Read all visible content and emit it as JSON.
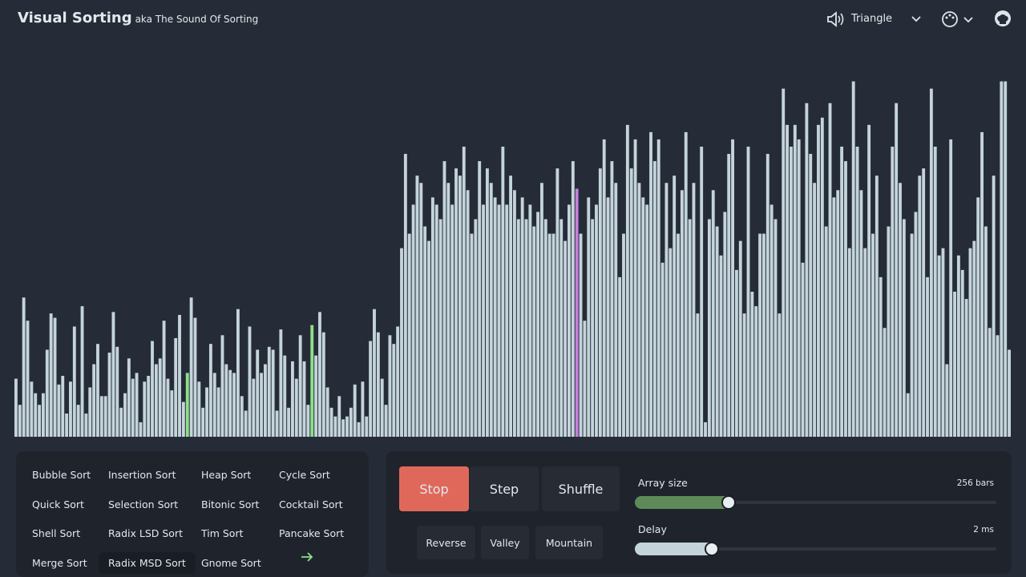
{
  "header": {
    "title": "Visual Sorting",
    "subtitle": "aka The Sound Of Sorting",
    "sound": "Triangle"
  },
  "bars": {
    "values": [
      40,
      22,
      96,
      80,
      38,
      30,
      22,
      30,
      60,
      85,
      82,
      36,
      42,
      16,
      38,
      76,
      22,
      90,
      16,
      34,
      50,
      64,
      28,
      28,
      58,
      86,
      62,
      20,
      30,
      54,
      40,
      44,
      10,
      38,
      42,
      66,
      50,
      54,
      80,
      40,
      32,
      68,
      84,
      24,
      44,
      96,
      82,
      38,
      20,
      34,
      64,
      44,
      34,
      70,
      50,
      46,
      44,
      88,
      28,
      18,
      76,
      40,
      60,
      44,
      50,
      62,
      60,
      18,
      74,
      56,
      20,
      52,
      40,
      70,
      52,
      22,
      77,
      56,
      86,
      72,
      34,
      20,
      14,
      28,
      12,
      14,
      20,
      36,
      10,
      38,
      14,
      66,
      88,
      72,
      40,
      22,
      70,
      64,
      76,
      130,
      195,
      140,
      160,
      180,
      175,
      145,
      135,
      165,
      160,
      150,
      190,
      175,
      160,
      185,
      180,
      200,
      170,
      140,
      150,
      190,
      160,
      185,
      175,
      165,
      160,
      200,
      160,
      180,
      170,
      150,
      165,
      150,
      160,
      145,
      155,
      175,
      150,
      140,
      140,
      185,
      150,
      135,
      160,
      190,
      171,
      140,
      80,
      165,
      150,
      160,
      185,
      205,
      165,
      190,
      175,
      110,
      140,
      215,
      185,
      205,
      175,
      165,
      160,
      210,
      190,
      205,
      120,
      175,
      130,
      180,
      140,
      170,
      210,
      150,
      175,
      85,
      200,
      10,
      150,
      170,
      145,
      125,
      155,
      195,
      205,
      115,
      135,
      85,
      200,
      100,
      90,
      140,
      140,
      195,
      160,
      150,
      85,
      240,
      215,
      200,
      215,
      205,
      120,
      230,
      195,
      175,
      215,
      220,
      145,
      230,
      165,
      170,
      200,
      190,
      130,
      245,
      200,
      170,
      130,
      215,
      140,
      180,
      110,
      75,
      145,
      200,
      230,
      175,
      150,
      30,
      140,
      155,
      180,
      185,
      110,
      240,
      200,
      125,
      130,
      50,
      205,
      100,
      125,
      115,
      95,
      130,
      135,
      165,
      210,
      145,
      75,
      180,
      70,
      245,
      245,
      60
    ],
    "color": "#c4d4db",
    "highlighted": [
      {
        "index": 44,
        "color": "#8fe08a"
      },
      {
        "index": 76,
        "color": "#8fe08a"
      },
      {
        "index": 144,
        "color": "#c67fdc"
      }
    ]
  },
  "algorithms": {
    "items": [
      "Bubble Sort",
      "Insertion Sort",
      "Heap Sort",
      "Cycle Sort",
      "Quick Sort",
      "Selection Sort",
      "Bitonic Sort",
      "Cocktail Sort",
      "Shell Sort",
      "Radix LSD Sort",
      "Tim Sort",
      "Pancake Sort",
      "Merge Sort",
      "Radix MSD Sort",
      "Gnome Sort"
    ],
    "selected_index": 13
  },
  "controls": {
    "primary": [
      "Stop",
      "Step",
      "Shuffle"
    ],
    "presets": [
      "Reverse",
      "Valley",
      "Mountain"
    ],
    "array_size": {
      "label": "Array size",
      "value": "256 bars"
    },
    "delay": {
      "label": "Delay",
      "value": "2 ms"
    }
  }
}
